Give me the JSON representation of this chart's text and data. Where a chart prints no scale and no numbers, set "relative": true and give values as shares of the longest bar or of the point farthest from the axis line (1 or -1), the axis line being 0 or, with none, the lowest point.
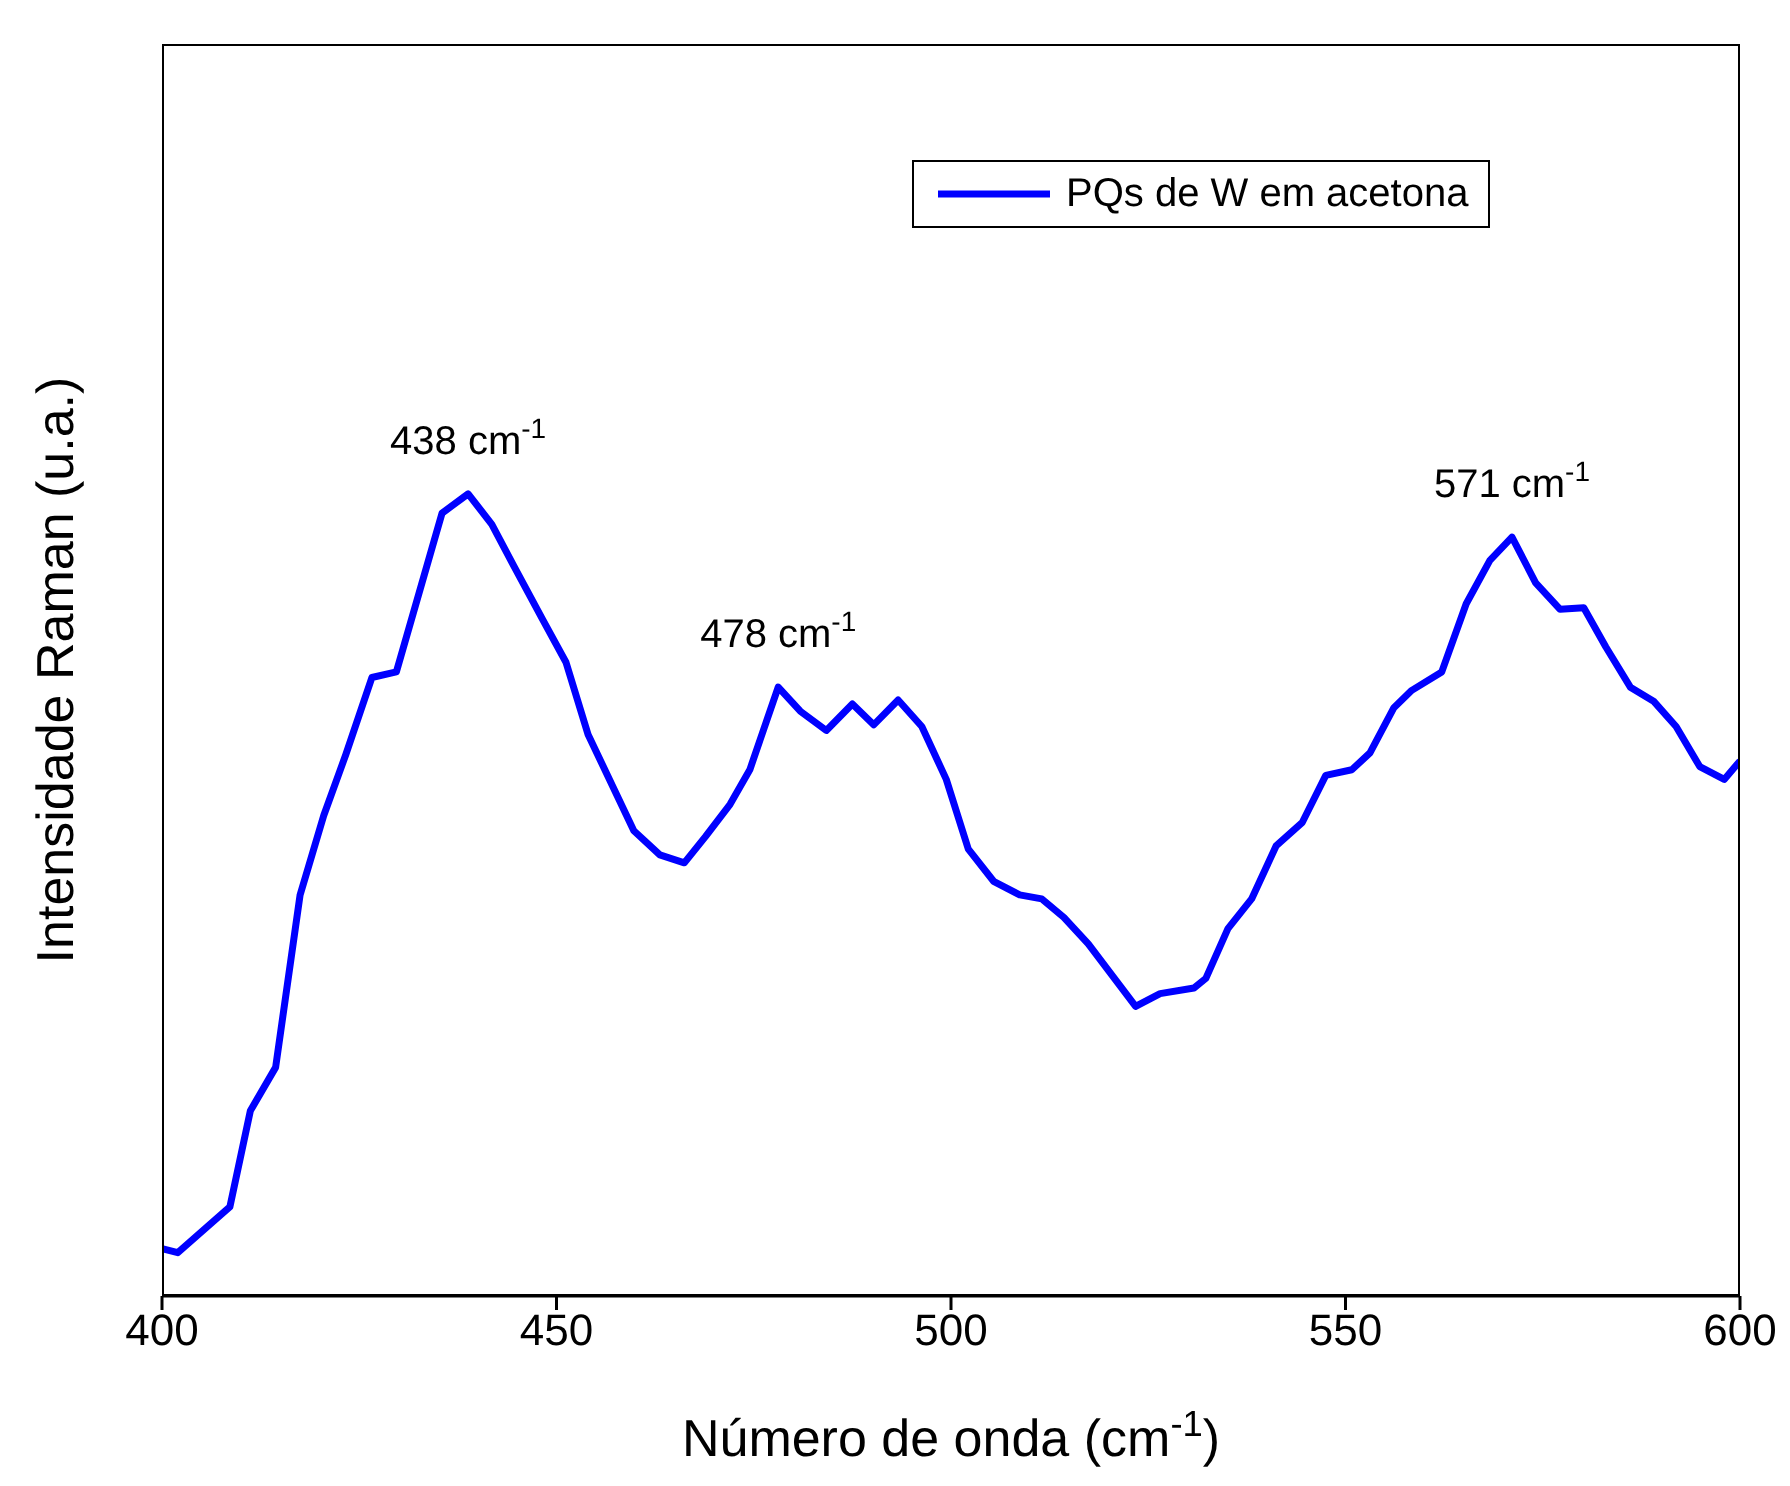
{
  "chart_data": {
    "type": "line",
    "xlabel": "Número de onda (cm$^{-1}$)",
    "ylabel": "Intensidade Raman (u.a.)",
    "relative": true,
    "xlim": [
      400,
      600
    ],
    "xticks": [
      400,
      450,
      500,
      550,
      600
    ],
    "grid": false,
    "legend": "top right",
    "marker": "none",
    "line_style": "solid",
    "series": [
      {
        "name": "PQs de W em acetona",
        "color": "#0000ff",
        "x": [
          400,
          402.0,
          408.6,
          411.2,
          414.4,
          417.5,
          420.5,
          423.3,
          426.6,
          429.7,
          435.5,
          438.8,
          441.8,
          444.6,
          448.2,
          451.2,
          454.0,
          459.8,
          463.1,
          466.2,
          468.9,
          472.0,
          474.5,
          478.1,
          480.9,
          484.2,
          487.5,
          490.2,
          493.3,
          496.3,
          499.4,
          502.2,
          505.4,
          508.7,
          511.5,
          514.3,
          517.4,
          523.4,
          526.5,
          530.8,
          532.3,
          535.1,
          538.1,
          541.2,
          544.5,
          547.5,
          550.8,
          553.1,
          556.1,
          558.4,
          562.2,
          565.3,
          568.3,
          571.1,
          574.1,
          577.2,
          580.2,
          583.0,
          586.1,
          589.1,
          591.9,
          594.9,
          598.0,
          600
        ],
        "values": [
          0.059,
          0.054,
          0.111,
          0.231,
          0.285,
          0.5,
          0.599,
          0.675,
          0.771,
          0.778,
          0.976,
          1,
          0.962,
          0.91,
          0.844,
          0.79,
          0.7,
          0.58,
          0.55,
          0.54,
          0.573,
          0.613,
          0.656,
          0.759,
          0.729,
          0.705,
          0.738,
          0.712,
          0.743,
          0.71,
          0.644,
          0.557,
          0.517,
          0.5,
          0.495,
          0.472,
          0.439,
          0.361,
          0.377,
          0.384,
          0.396,
          0.458,
          0.495,
          0.561,
          0.59,
          0.649,
          0.656,
          0.677,
          0.733,
          0.755,
          0.778,
          0.863,
          0.917,
          0.946,
          0.889,
          0.856,
          0.858,
          0.809,
          0.759,
          0.741,
          0.71,
          0.66,
          0.644,
          0.667
        ]
      }
    ],
    "annotations": [
      {
        "text": "438 cm$^{-1}$",
        "x": 438.8,
        "y": 1
      },
      {
        "text": "478 cm$^{-1}$",
        "x": 478.1,
        "y": 0.759
      },
      {
        "text": "571 cm$^{-1}$",
        "x": 571.1,
        "y": 0.946
      }
    ]
  }
}
